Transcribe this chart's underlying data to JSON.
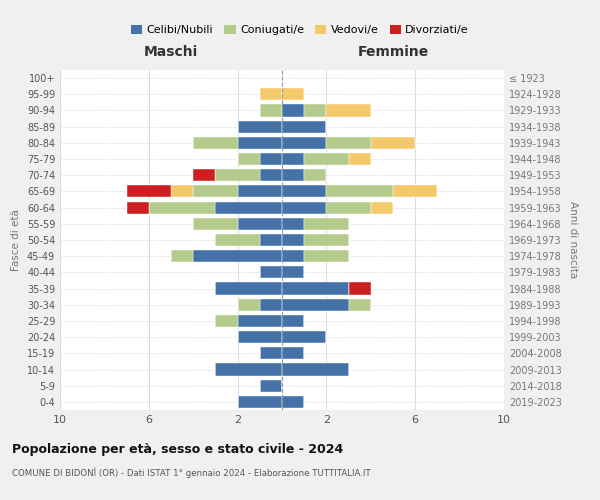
{
  "age_groups": [
    "0-4",
    "5-9",
    "10-14",
    "15-19",
    "20-24",
    "25-29",
    "30-34",
    "35-39",
    "40-44",
    "45-49",
    "50-54",
    "55-59",
    "60-64",
    "65-69",
    "70-74",
    "75-79",
    "80-84",
    "85-89",
    "90-94",
    "95-99",
    "100+"
  ],
  "birth_years": [
    "2019-2023",
    "2014-2018",
    "2009-2013",
    "2004-2008",
    "1999-2003",
    "1994-1998",
    "1989-1993",
    "1984-1988",
    "1979-1983",
    "1974-1978",
    "1969-1973",
    "1964-1968",
    "1959-1963",
    "1954-1958",
    "1949-1953",
    "1944-1948",
    "1939-1943",
    "1934-1938",
    "1929-1933",
    "1924-1928",
    "≤ 1923"
  ],
  "colors": {
    "celibi": "#4472a8",
    "coniugati": "#b5cb8b",
    "vedovi": "#f5c96a",
    "divorziati": "#cc2020"
  },
  "maschi": {
    "celibi": [
      2,
      1,
      3,
      1,
      2,
      2,
      1,
      3,
      1,
      4,
      1,
      2,
      3,
      2,
      1,
      1,
      2,
      2,
      0,
      0,
      0
    ],
    "coniugati": [
      0,
      0,
      0,
      0,
      0,
      1,
      1,
      0,
      0,
      1,
      2,
      2,
      3,
      2,
      2,
      1,
      2,
      0,
      1,
      0,
      0
    ],
    "vedovi": [
      0,
      0,
      0,
      0,
      0,
      0,
      0,
      0,
      0,
      0,
      0,
      0,
      0,
      1,
      0,
      0,
      0,
      0,
      0,
      1,
      0
    ],
    "divorziati": [
      0,
      0,
      0,
      0,
      0,
      0,
      0,
      0,
      0,
      0,
      0,
      0,
      1,
      2,
      1,
      0,
      0,
      0,
      0,
      0,
      0
    ]
  },
  "femmine": {
    "celibi": [
      1,
      0,
      3,
      1,
      2,
      1,
      3,
      3,
      1,
      1,
      1,
      1,
      2,
      2,
      1,
      1,
      2,
      2,
      1,
      0,
      0
    ],
    "coniugati": [
      0,
      0,
      0,
      0,
      0,
      0,
      1,
      0,
      0,
      2,
      2,
      2,
      2,
      3,
      1,
      2,
      2,
      0,
      1,
      0,
      0
    ],
    "vedovi": [
      0,
      0,
      0,
      0,
      0,
      0,
      0,
      0,
      0,
      0,
      0,
      0,
      1,
      2,
      0,
      1,
      2,
      0,
      2,
      1,
      0
    ],
    "divorziati": [
      0,
      0,
      0,
      0,
      0,
      0,
      0,
      1,
      0,
      0,
      0,
      0,
      0,
      0,
      0,
      0,
      0,
      0,
      0,
      0,
      0
    ]
  },
  "xlim": 10,
  "title": "Popolazione per età, sesso e stato civile - 2024",
  "subtitle": "COMUNE DI BIDONÌ (OR) - Dati ISTAT 1° gennaio 2024 - Elaborazione TUTTITALIA.IT",
  "ylabel_left": "Fasce di età",
  "ylabel_right": "Anni di nascita",
  "xlabel_left": "Maschi",
  "xlabel_right": "Femmine",
  "legend_labels": [
    "Celibi/Nubili",
    "Coniugati/e",
    "Vedovi/e",
    "Divorziati/e"
  ],
  "bg_color": "#f0f0f0",
  "plot_bg": "#ffffff"
}
